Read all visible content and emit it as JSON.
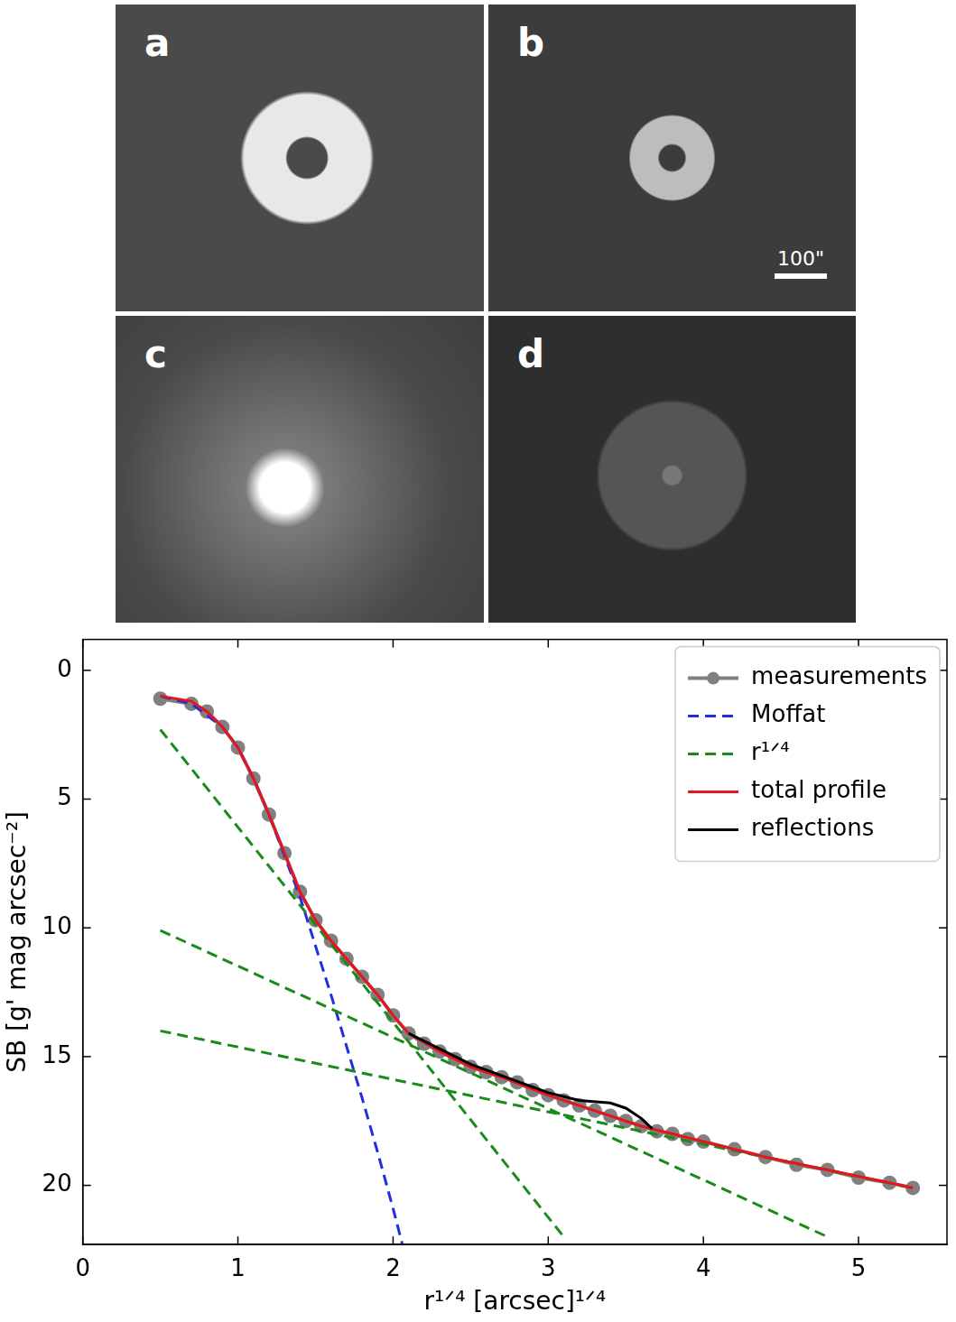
{
  "panels": [
    {
      "label": "a"
    },
    {
      "label": "b",
      "scale_bar": "100\""
    },
    {
      "label": "c"
    },
    {
      "label": "d"
    }
  ],
  "chart_data": {
    "type": "line",
    "x_label": "r¹ᐟ⁴ [arcsec]¹ᐟ⁴",
    "y_label": "SB [g' mag arcsec⁻²]",
    "xlim": [
      0,
      5.57
    ],
    "xticks": [
      0,
      1,
      2,
      3,
      4,
      5
    ],
    "ylim": [
      22.3,
      -1.2
    ],
    "yticks": [
      0,
      5,
      10,
      15,
      20
    ],
    "grid": false,
    "legend": "upper right",
    "series": [
      {
        "name": "measurements",
        "color": "#808080",
        "marker": "circle",
        "line_style": "solid",
        "x": [
          0.5,
          0.7,
          0.8,
          0.9,
          1.0,
          1.1,
          1.2,
          1.3,
          1.4,
          1.5,
          1.6,
          1.7,
          1.8,
          1.9,
          2.0,
          2.1,
          2.2,
          2.3,
          2.4,
          2.5,
          2.6,
          2.7,
          2.8,
          2.9,
          3.0,
          3.1,
          3.2,
          3.3,
          3.4,
          3.5,
          3.6,
          3.7,
          3.8,
          3.9,
          4.0,
          4.2,
          4.4,
          4.6,
          4.8,
          5.0,
          5.2,
          5.35
        ],
        "values": [
          1.1,
          1.3,
          1.6,
          2.2,
          3.0,
          4.2,
          5.6,
          7.1,
          8.6,
          9.7,
          10.5,
          11.2,
          11.9,
          12.6,
          13.4,
          14.1,
          14.5,
          14.8,
          15.1,
          15.4,
          15.6,
          15.8,
          16.0,
          16.3,
          16.5,
          16.7,
          16.9,
          17.1,
          17.3,
          17.5,
          17.7,
          17.9,
          18.0,
          18.2,
          18.3,
          18.6,
          18.9,
          19.2,
          19.4,
          19.7,
          19.9,
          20.1
        ]
      },
      {
        "name": "Moffat",
        "color": "#1f2fe0",
        "line_style": "dashed",
        "x": [
          0.5,
          0.7,
          0.9,
          1.0,
          1.1,
          1.2,
          1.3,
          1.4,
          1.5,
          1.6,
          1.7,
          1.8,
          1.9,
          2.0,
          2.06
        ],
        "values": [
          1.0,
          1.3,
          2.2,
          3.0,
          4.2,
          5.6,
          7.2,
          8.8,
          10.7,
          12.6,
          14.6,
          16.6,
          18.7,
          20.9,
          22.3
        ]
      },
      {
        "name": "r¹ᐟ⁴",
        "color": "#1a8a1a",
        "line_style": "dashed",
        "x": [
          0.5,
          3.1,
          null,
          0.5,
          4.8,
          null,
          0.5,
          5.35
        ],
        "values": [
          2.3,
          22.0,
          null,
          10.1,
          22.0,
          null,
          14.0,
          20.1
        ]
      },
      {
        "name": "total profile",
        "color": "#e8141c",
        "line_style": "solid",
        "x": [
          0.5,
          0.7,
          0.8,
          0.9,
          1.0,
          1.1,
          1.2,
          1.3,
          1.4,
          1.5,
          1.6,
          1.7,
          1.8,
          1.9,
          2.0,
          2.1,
          2.3,
          2.5,
          2.7,
          3.0,
          3.3,
          3.6,
          4.0,
          4.4,
          4.8,
          5.2,
          5.35
        ],
        "values": [
          1.0,
          1.2,
          1.6,
          2.2,
          3.0,
          4.2,
          5.6,
          7.1,
          8.6,
          9.7,
          10.5,
          11.2,
          11.9,
          12.6,
          13.4,
          14.1,
          14.8,
          15.4,
          15.8,
          16.5,
          17.1,
          17.7,
          18.3,
          18.9,
          19.4,
          19.9,
          20.1
        ]
      },
      {
        "name": "reflections",
        "color": "#000000",
        "line_style": "solid",
        "x": [
          2.1,
          2.5,
          3.0,
          3.2,
          3.4,
          3.5,
          3.6,
          3.67
        ],
        "values": [
          14.1,
          15.3,
          16.4,
          16.7,
          16.8,
          17.0,
          17.4,
          17.8
        ]
      }
    ]
  }
}
